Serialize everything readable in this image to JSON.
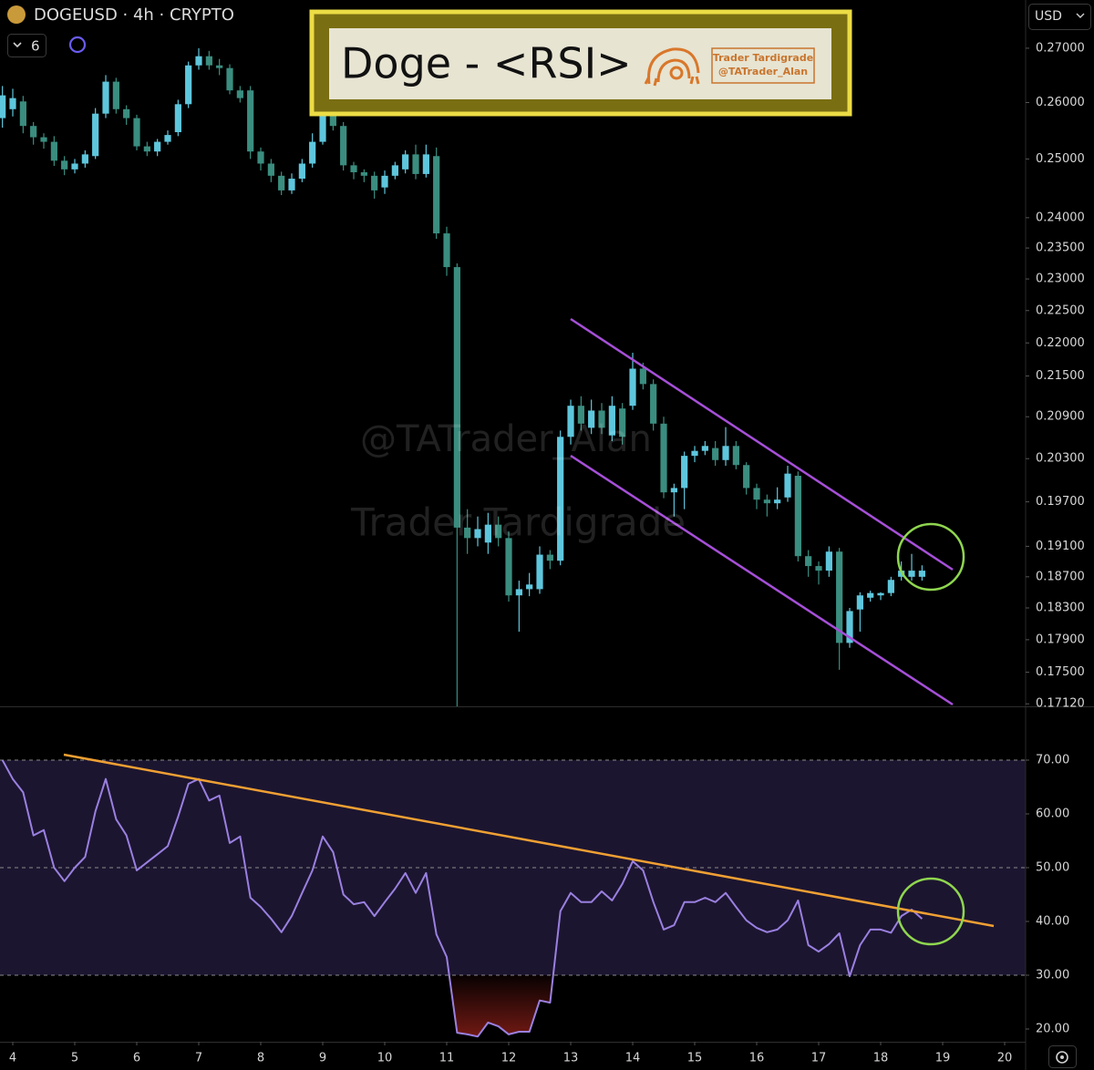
{
  "header": {
    "symbol": "DOGEUSD · 4h · CRYPTO",
    "layout_count": "6",
    "currency": "USD"
  },
  "banner": {
    "title": "Doge - <RSI>",
    "brand": "Trader Tardigrade",
    "handle": "@TATrader_Alan"
  },
  "watermark": {
    "handle": "@TATrader_Alan",
    "brand": "Trader Tardigrade"
  },
  "chart_data": [
    {
      "type": "candlestick",
      "log": true,
      "up_color": "#5ec6dc",
      "down_color": "#3a8d7f",
      "xlim": [
        3.794,
        20.338
      ],
      "ylim": [
        0.1709,
        0.2792
      ],
      "yticks": [
        {
          "value": 0.27,
          "label": "0.27000"
        },
        {
          "value": 0.26,
          "label": "0.26000"
        },
        {
          "value": 0.25,
          "label": "0.25000"
        },
        {
          "value": 0.24,
          "label": "0.24000"
        },
        {
          "value": 0.235,
          "label": "0.23500"
        },
        {
          "value": 0.23,
          "label": "0.23000"
        },
        {
          "value": 0.225,
          "label": "0.22500"
        },
        {
          "value": 0.22,
          "label": "0.22000"
        },
        {
          "value": 0.215,
          "label": "0.21500"
        },
        {
          "value": 0.209,
          "label": "0.20900"
        },
        {
          "value": 0.203,
          "label": "0.20300"
        },
        {
          "value": 0.197,
          "label": "0.19700"
        },
        {
          "value": 0.191,
          "label": "0.19100"
        },
        {
          "value": 0.187,
          "label": "0.18700"
        },
        {
          "value": 0.183,
          "label": "0.18300"
        },
        {
          "value": 0.179,
          "label": "0.17900"
        },
        {
          "value": 0.175,
          "label": "0.17500"
        },
        {
          "value": 0.1712,
          "label": "0.17120"
        }
      ],
      "x": [
        3.833,
        4,
        4.167,
        4.333,
        4.5,
        4.667,
        4.833,
        5,
        5.167,
        5.333,
        5.5,
        5.667,
        5.833,
        6,
        6.167,
        6.333,
        6.5,
        6.667,
        6.833,
        7,
        7.167,
        7.333,
        7.5,
        7.667,
        7.833,
        8,
        8.167,
        8.333,
        8.5,
        8.667,
        8.833,
        9,
        9.167,
        9.333,
        9.5,
        9.667,
        9.833,
        10,
        10.167,
        10.333,
        10.5,
        10.667,
        10.833,
        11,
        11.167,
        11.333,
        11.5,
        11.667,
        11.833,
        12,
        12.167,
        12.333,
        12.5,
        12.667,
        12.833,
        13,
        13.167,
        13.333,
        13.5,
        13.667,
        13.833,
        14,
        14.167,
        14.333,
        14.5,
        14.667,
        14.833,
        15,
        15.167,
        15.333,
        15.5,
        15.667,
        15.833,
        16,
        16.167,
        16.333,
        16.5,
        16.667,
        16.833,
        17,
        17.167,
        17.333,
        17.5,
        17.667,
        17.833,
        18,
        18.167,
        18.333,
        18.5,
        18.667
      ],
      "open": [
        0.2572,
        0.2588,
        0.2602,
        0.2558,
        0.2538,
        0.253,
        0.2497,
        0.2482,
        0.2492,
        0.2505,
        0.258,
        0.2638,
        0.2588,
        0.2572,
        0.2522,
        0.2513,
        0.253,
        0.2547,
        0.2597,
        0.2668,
        0.2685,
        0.2668,
        0.2663,
        0.2622,
        0.2622,
        0.2513,
        0.2492,
        0.2471,
        0.2446,
        0.2466,
        0.2492,
        0.253,
        0.2592,
        0.2558,
        0.2489,
        0.2477,
        0.2471,
        0.2451,
        0.2471,
        0.2482,
        0.2508,
        0.2474,
        0.2505,
        0.2374,
        0.2319,
        0.1935,
        0.1921,
        0.1915,
        0.1939,
        0.1921,
        0.1846,
        0.1854,
        0.1854,
        0.1899,
        0.1891,
        0.2061,
        0.2106,
        0.2074,
        0.2099,
        0.2063,
        0.2102,
        0.2106,
        0.2161,
        0.2138,
        0.208,
        0.1983,
        0.1989,
        0.2034,
        0.2041,
        0.2045,
        0.2028,
        0.2048,
        0.2021,
        0.1989,
        0.1973,
        0.1968,
        0.1976,
        0.2006,
        0.1897,
        0.1884,
        0.1878,
        0.1903,
        0.1786,
        0.1828,
        0.1843,
        0.1846,
        0.1849,
        0.187,
        0.187,
        0.187
      ],
      "high": [
        0.263,
        0.2625,
        0.2612,
        0.2565,
        0.2545,
        0.254,
        0.2505,
        0.25,
        0.2515,
        0.259,
        0.265,
        0.2645,
        0.2595,
        0.2578,
        0.253,
        0.2535,
        0.255,
        0.2605,
        0.2675,
        0.27,
        0.2695,
        0.268,
        0.267,
        0.263,
        0.263,
        0.252,
        0.25,
        0.2478,
        0.2475,
        0.25,
        0.2545,
        0.2615,
        0.26,
        0.2565,
        0.2495,
        0.2482,
        0.2478,
        0.248,
        0.2495,
        0.2515,
        0.2525,
        0.2525,
        0.252,
        0.2385,
        0.2325,
        0.196,
        0.195,
        0.1955,
        0.195,
        0.193,
        0.1865,
        0.1875,
        0.191,
        0.1905,
        0.207,
        0.2115,
        0.212,
        0.2115,
        0.211,
        0.212,
        0.211,
        0.2185,
        0.217,
        0.2145,
        0.209,
        0.1995,
        0.204,
        0.2048,
        0.2055,
        0.2055,
        0.2075,
        0.2055,
        0.2025,
        0.1995,
        0.198,
        0.199,
        0.202,
        0.2012,
        0.1905,
        0.189,
        0.191,
        0.1908,
        0.183,
        0.185,
        0.1852,
        0.185,
        0.187,
        0.189,
        0.19,
        0.1885
      ],
      "low": [
        0.2555,
        0.2575,
        0.2545,
        0.2525,
        0.2518,
        0.2488,
        0.2472,
        0.2475,
        0.2485,
        0.25,
        0.2572,
        0.258,
        0.256,
        0.2515,
        0.2505,
        0.2505,
        0.2525,
        0.254,
        0.259,
        0.266,
        0.266,
        0.265,
        0.2615,
        0.26,
        0.25,
        0.248,
        0.246,
        0.2438,
        0.244,
        0.246,
        0.2485,
        0.2525,
        0.255,
        0.248,
        0.2465,
        0.246,
        0.2432,
        0.244,
        0.2465,
        0.2475,
        0.2465,
        0.2468,
        0.2365,
        0.2305,
        0.1709,
        0.19,
        0.191,
        0.19,
        0.191,
        0.1838,
        0.18,
        0.1845,
        0.1848,
        0.188,
        0.1885,
        0.205,
        0.207,
        0.2065,
        0.2065,
        0.2055,
        0.205,
        0.21,
        0.213,
        0.207,
        0.1975,
        0.195,
        0.196,
        0.2025,
        0.2035,
        0.202,
        0.202,
        0.2015,
        0.198,
        0.196,
        0.195,
        0.196,
        0.197,
        0.189,
        0.187,
        0.186,
        0.187,
        0.1753,
        0.178,
        0.18,
        0.1838,
        0.184,
        0.1845,
        0.1865,
        0.1865,
        0.1865
      ],
      "close": [
        0.2613,
        0.2608,
        0.2558,
        0.2538,
        0.253,
        0.2497,
        0.2482,
        0.2492,
        0.2508,
        0.258,
        0.2638,
        0.2588,
        0.2572,
        0.2522,
        0.2513,
        0.253,
        0.2542,
        0.2597,
        0.2668,
        0.2685,
        0.2668,
        0.2663,
        0.2622,
        0.2608,
        0.2513,
        0.2492,
        0.2471,
        0.2446,
        0.2466,
        0.2492,
        0.253,
        0.2597,
        0.2558,
        0.2489,
        0.2477,
        0.2471,
        0.2446,
        0.2471,
        0.2489,
        0.2508,
        0.2474,
        0.2508,
        0.2374,
        0.2319,
        0.1935,
        0.1921,
        0.1933,
        0.1939,
        0.1921,
        0.1846,
        0.1854,
        0.186,
        0.1899,
        0.1891,
        0.2061,
        0.2106,
        0.208,
        0.2099,
        0.2074,
        0.2106,
        0.2061,
        0.2161,
        0.2138,
        0.208,
        0.1983,
        0.1989,
        0.2034,
        0.2041,
        0.2048,
        0.2028,
        0.2048,
        0.2021,
        0.1989,
        0.1973,
        0.1968,
        0.1973,
        0.2009,
        0.1897,
        0.1884,
        0.1878,
        0.1903,
        0.1786,
        0.1826,
        0.1846,
        0.1849,
        0.1849,
        0.1866,
        0.1878,
        0.1878,
        0.1878
      ]
    },
    {
      "type": "line",
      "color": "#9a80e0",
      "band": [
        30,
        70
      ],
      "band_color": "#1c1530",
      "dashed_levels": [
        70,
        50,
        30
      ],
      "oversold_color": "#a3241c",
      "xlim": [
        3.794,
        20.338
      ],
      "xticks": [
        4,
        5,
        6,
        7,
        8,
        9,
        10,
        11,
        12,
        13,
        14,
        15,
        16,
        17,
        18,
        19,
        20
      ],
      "ylim": [
        17.63,
        79.83
      ],
      "yticks": [
        {
          "value": 70,
          "label": "70.00"
        },
        {
          "value": 60,
          "label": "60.00"
        },
        {
          "value": 50,
          "label": "50.00"
        },
        {
          "value": 40,
          "label": "40.00"
        },
        {
          "value": 30,
          "label": "30.00"
        },
        {
          "value": 20,
          "label": "20.00"
        }
      ],
      "x": [
        3.833,
        4,
        4.167,
        4.333,
        4.5,
        4.667,
        4.833,
        5,
        5.167,
        5.333,
        5.5,
        5.667,
        5.833,
        6,
        6.167,
        6.333,
        6.5,
        6.667,
        6.833,
        7,
        7.167,
        7.333,
        7.5,
        7.667,
        7.833,
        8,
        8.167,
        8.333,
        8.5,
        8.667,
        8.833,
        9,
        9.167,
        9.333,
        9.5,
        9.667,
        9.833,
        10,
        10.167,
        10.333,
        10.5,
        10.667,
        10.833,
        11,
        11.167,
        11.333,
        11.5,
        11.667,
        11.833,
        12,
        12.167,
        12.333,
        12.5,
        12.667,
        12.833,
        13,
        13.167,
        13.333,
        13.5,
        13.667,
        13.833,
        14,
        14.167,
        14.333,
        14.5,
        14.667,
        14.833,
        15,
        15.167,
        15.333,
        15.5,
        15.667,
        15.833,
        16,
        16.167,
        16.333,
        16.5,
        16.667,
        16.833,
        17,
        17.167,
        17.333,
        17.5,
        17.667,
        17.833,
        18,
        18.167,
        18.333,
        18.5,
        18.667
      ],
      "values": [
        70,
        66.5,
        64,
        56,
        57,
        50,
        47.5,
        50,
        52,
        60.5,
        66.5,
        59,
        56,
        49.5,
        51,
        52.5,
        54,
        59.5,
        65.6,
        66.5,
        62.5,
        63.4,
        54.6,
        55.8,
        44.4,
        42.7,
        40.5,
        38,
        41,
        45.3,
        49.5,
        55.8,
        52.9,
        45,
        43.2,
        43.6,
        41,
        43.6,
        46.1,
        49,
        45.3,
        49,
        37.6,
        33.4,
        19.3,
        19,
        18.6,
        21.2,
        20.5,
        19,
        19.5,
        19.5,
        25.3,
        24.9,
        41.9,
        45.3,
        43.6,
        43.6,
        45.6,
        43.9,
        47,
        51.2,
        49.5,
        43.6,
        38.5,
        39.3,
        43.6,
        43.6,
        44.4,
        43.6,
        45.3,
        42.7,
        40.2,
        38.8,
        38,
        38.5,
        40.2,
        43.9,
        35.6,
        34.4,
        35.8,
        37.8,
        29.8,
        35.6,
        38.5,
        38.5,
        37.9,
        41,
        42.2,
        40.5
      ]
    }
  ]
}
